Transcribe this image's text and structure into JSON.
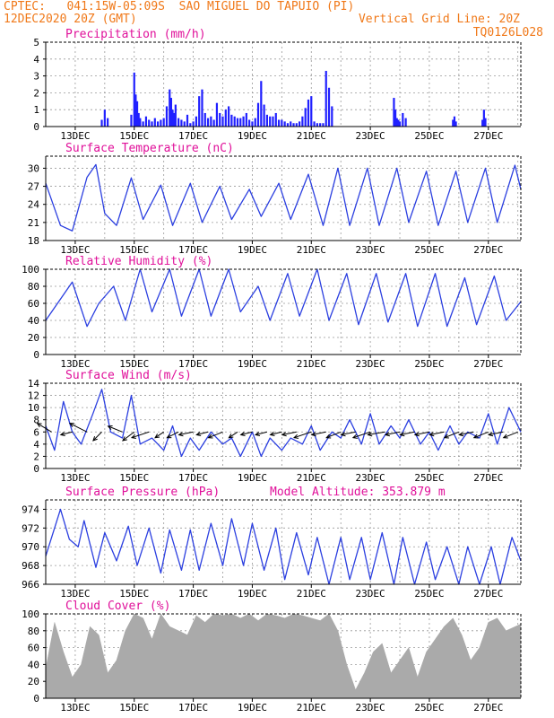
{
  "header": {
    "station_line": "CPTEC:   041:15W-05:09S  SAO MIGUEL DO TAPUIO (PI)",
    "time_line": "12DEC2020 20Z (GMT)",
    "grid_note": "Vertical Grid Line: 20Z",
    "code": "TQ0126L028"
  },
  "colors": {
    "header": "#f07818",
    "title": "#e0109a",
    "series": "#2b3fe0",
    "bars": "#2020ff",
    "cloud": "#aaaaaa",
    "grid": "#999999"
  },
  "chart_data": [
    {
      "type": "bar",
      "title": "Precipitation (mm/h)",
      "x_ticks": [
        "13DEC",
        "15DEC",
        "17DEC",
        "19DEC",
        "21DEC",
        "23DEC",
        "25DEC",
        "27DEC"
      ],
      "ylim": [
        0,
        5
      ],
      "y_ticks": [
        0,
        1,
        2,
        3,
        4,
        5
      ],
      "grid": true,
      "x_days": [
        1.9,
        2.0,
        2.1,
        2.9,
        3.0,
        3.05,
        3.1,
        3.15,
        3.2,
        3.3,
        3.4,
        3.5,
        3.6,
        3.7,
        3.8,
        3.9,
        4.0,
        4.1,
        4.2,
        4.25,
        4.3,
        4.35,
        4.4,
        4.5,
        4.6,
        4.7,
        4.8,
        4.9,
        5.0,
        5.1,
        5.2,
        5.3,
        5.4,
        5.5,
        5.6,
        5.7,
        5.8,
        5.9,
        6.0,
        6.1,
        6.2,
        6.3,
        6.4,
        6.5,
        6.6,
        6.7,
        6.8,
        6.9,
        7.0,
        7.1,
        7.2,
        7.3,
        7.4,
        7.5,
        7.6,
        7.7,
        7.8,
        7.9,
        8.0,
        8.1,
        8.2,
        8.3,
        8.4,
        8.5,
        8.6,
        8.7,
        8.8,
        8.9,
        9.0,
        9.1,
        9.2,
        9.3,
        9.4,
        9.5,
        9.6,
        9.7,
        11.8,
        11.85,
        11.9,
        11.95,
        12.0,
        12.1,
        12.2,
        13.8,
        13.85,
        13.9,
        14.8,
        14.85,
        14.9
      ],
      "values": [
        0.4,
        1.0,
        0.5,
        0.7,
        3.2,
        1.9,
        1.5,
        0.8,
        0.5,
        0.3,
        0.6,
        0.4,
        0.3,
        0.5,
        0.3,
        0.4,
        0.5,
        1.2,
        2.2,
        1.7,
        1.0,
        0.8,
        1.3,
        0.5,
        0.4,
        0.3,
        0.7,
        0.2,
        0.3,
        0.6,
        1.8,
        2.2,
        0.8,
        0.5,
        0.6,
        0.4,
        1.4,
        0.8,
        0.6,
        1.0,
        1.2,
        0.7,
        0.6,
        0.5,
        0.5,
        0.6,
        0.8,
        0.4,
        0.3,
        0.5,
        1.4,
        2.7,
        1.3,
        0.7,
        0.6,
        0.6,
        0.8,
        0.4,
        0.4,
        0.3,
        0.2,
        0.3,
        0.2,
        0.2,
        0.3,
        0.6,
        1.1,
        1.6,
        1.8,
        0.3,
        0.2,
        0.2,
        0.2,
        3.3,
        2.3,
        1.2,
        1.7,
        1.0,
        0.5,
        0.4,
        0.3,
        0.8,
        0.5,
        0.4,
        0.6,
        0.3,
        0.4,
        1.0,
        0.5
      ]
    },
    {
      "type": "line",
      "title": "Surface Temperature (nC)",
      "x_ticks": [
        "13DEC",
        "15DEC",
        "17DEC",
        "19DEC",
        "21DEC",
        "23DEC",
        "25DEC",
        "27DEC"
      ],
      "ylim": [
        18,
        32
      ],
      "y_ticks": [
        18,
        21,
        24,
        27,
        30
      ],
      "grid": true,
      "x_days": [
        0,
        0.5,
        0.9,
        1.4,
        1.7,
        2.0,
        2.4,
        2.9,
        3.3,
        3.9,
        4.3,
        4.9,
        5.3,
        5.9,
        6.3,
        6.9,
        7.3,
        7.9,
        8.3,
        8.9,
        9.4,
        9.9,
        10.3,
        10.9,
        11.3,
        11.9,
        12.3,
        12.9,
        13.3,
        13.9,
        14.3,
        14.9,
        15.3,
        15.9,
        16.1
      ],
      "values": [
        27.5,
        20.5,
        19.6,
        28.5,
        30.6,
        22.5,
        20.5,
        28.4,
        21.5,
        27.2,
        20.5,
        27.5,
        21.0,
        27.0,
        21.5,
        26.5,
        22.0,
        27.5,
        21.5,
        29.0,
        20.5,
        30.0,
        20.5,
        30.0,
        20.5,
        30.0,
        21.0,
        29.5,
        20.5,
        29.5,
        21.0,
        30.0,
        21.0,
        30.5,
        26.5
      ]
    },
    {
      "type": "line",
      "title": "Relative Humidity (%)",
      "x_ticks": [
        "13DEC",
        "15DEC",
        "17DEC",
        "19DEC",
        "21DEC",
        "23DEC",
        "25DEC",
        "27DEC"
      ],
      "ylim": [
        0,
        100
      ],
      "y_ticks": [
        0,
        20,
        40,
        60,
        80,
        100
      ],
      "grid": true,
      "x_days": [
        0,
        0.4,
        0.9,
        1.4,
        1.8,
        2.3,
        2.7,
        3.2,
        3.6,
        4.2,
        4.6,
        5.2,
        5.6,
        6.2,
        6.6,
        7.2,
        7.6,
        8.2,
        8.6,
        9.2,
        9.6,
        10.2,
        10.6,
        11.2,
        11.6,
        12.2,
        12.6,
        13.2,
        13.6,
        14.2,
        14.6,
        15.2,
        15.6,
        16.1
      ],
      "values": [
        40,
        60,
        85,
        33,
        60,
        80,
        40,
        100,
        50,
        100,
        45,
        100,
        45,
        100,
        50,
        80,
        40,
        95,
        45,
        100,
        40,
        95,
        35,
        95,
        38,
        95,
        33,
        95,
        33,
        90,
        35,
        92,
        40,
        62
      ]
    },
    {
      "type": "line",
      "title": "Surface Wind (m/s)",
      "x_ticks": [
        "13DEC",
        "15DEC",
        "17DEC",
        "19DEC",
        "21DEC",
        "23DEC",
        "25DEC",
        "27DEC"
      ],
      "ylim": [
        0,
        14
      ],
      "y_ticks": [
        0,
        2,
        4,
        6,
        8,
        10,
        12,
        14
      ],
      "grid": true,
      "x_days": [
        0,
        0.3,
        0.6,
        0.9,
        1.2,
        1.6,
        1.9,
        2.2,
        2.6,
        2.9,
        3.2,
        3.6,
        4.0,
        4.3,
        4.6,
        4.9,
        5.2,
        5.6,
        6.0,
        6.3,
        6.6,
        7.0,
        7.3,
        7.6,
        8.0,
        8.3,
        8.7,
        9.0,
        9.3,
        9.7,
        10.0,
        10.3,
        10.7,
        11.0,
        11.3,
        11.7,
        12.0,
        12.3,
        12.7,
        13.0,
        13.3,
        13.7,
        14.0,
        14.3,
        14.7,
        15.0,
        15.3,
        15.7,
        16.1
      ],
      "values": [
        7,
        3,
        11,
        6,
        4,
        9,
        13,
        6,
        5,
        12,
        4,
        5,
        3,
        7,
        2,
        5,
        3,
        6,
        4,
        5,
        2,
        6,
        2,
        5,
        3,
        5,
        4,
        7,
        3,
        6,
        5,
        8,
        4,
        9,
        4,
        7,
        5,
        8,
        4,
        6,
        3,
        7,
        4,
        6,
        5,
        9,
        4,
        10,
        6
      ],
      "vectors": {
        "x_days": [
          0.2,
          0.9,
          1.4,
          1.9,
          2.6,
          3.0,
          3.5,
          4.0,
          4.5,
          5.0,
          5.5,
          6.0,
          6.5,
          7.0,
          7.5,
          8.0,
          8.5,
          9.0,
          9.5,
          10.0,
          10.5,
          11.0,
          11.5,
          12.0,
          12.5,
          13.0,
          13.5,
          14.0,
          14.5,
          15.0,
          15.5,
          16.0
        ],
        "speed": [
          7,
          6,
          8,
          4,
          6,
          5,
          7,
          4,
          5,
          6,
          5,
          6,
          4,
          5,
          5,
          5,
          6,
          7,
          6,
          6,
          6,
          7,
          7,
          6,
          6,
          6,
          6,
          6,
          6,
          6,
          6,
          6
        ],
        "u": [
          -5,
          -4,
          -6,
          -3,
          -5,
          -4,
          -6,
          -3,
          -4,
          -5,
          -4,
          -5,
          -3,
          -4,
          -4,
          -4,
          -5,
          -6,
          -5,
          -5,
          -5,
          -6,
          -6,
          -5,
          -5,
          -5,
          -5,
          -5,
          -5,
          -5,
          -5,
          -5
        ],
        "v": [
          3,
          -1,
          3,
          -3,
          2,
          -3,
          -2,
          -2,
          -2,
          -1,
          -1,
          -2,
          -2,
          -1,
          -1,
          -1,
          -1,
          -2,
          -1,
          -2,
          -1,
          -2,
          -1,
          -1,
          -1,
          -1,
          -1,
          -2,
          -1,
          -2,
          -1,
          -2
        ]
      }
    },
    {
      "type": "line",
      "title": "Surface Pressure (hPa)",
      "annotation": "Model Altitude: 353.879 m",
      "x_ticks": [
        "13DEC",
        "15DEC",
        "17DEC",
        "19DEC",
        "21DEC",
        "23DEC",
        "25DEC",
        "27DEC"
      ],
      "ylim": [
        966,
        975
      ],
      "y_ticks": [
        966,
        968,
        970,
        972,
        974
      ],
      "grid": true,
      "x_days": [
        0,
        0.5,
        0.8,
        1.1,
        1.3,
        1.7,
        2.0,
        2.4,
        2.8,
        3.1,
        3.5,
        3.9,
        4.2,
        4.6,
        4.9,
        5.2,
        5.6,
        6.0,
        6.3,
        6.7,
        7.0,
        7.4,
        7.8,
        8.1,
        8.5,
        8.9,
        9.2,
        9.6,
        10.0,
        10.3,
        10.7,
        11.0,
        11.4,
        11.8,
        12.1,
        12.5,
        12.9,
        13.2,
        13.6,
        14.0,
        14.3,
        14.7,
        15.1,
        15.4,
        15.8,
        16.1
      ],
      "values": [
        969,
        974,
        970.8,
        970,
        972.8,
        967.8,
        971.5,
        968.5,
        972.2,
        968,
        972,
        967.2,
        971.8,
        967.5,
        971.8,
        967.5,
        972.5,
        968,
        973,
        968,
        972.5,
        967.5,
        972,
        966.5,
        971.5,
        967,
        971,
        966,
        971,
        966.5,
        971,
        966.5,
        971.5,
        966,
        971,
        966,
        970.5,
        966.5,
        970,
        966,
        970,
        966,
        970,
        966,
        971,
        968.5
      ]
    },
    {
      "type": "area",
      "title": "Cloud Cover (%)",
      "x_ticks": [
        "13DEC",
        "15DEC",
        "17DEC",
        "19DEC",
        "21DEC",
        "23DEC",
        "25DEC",
        "27DEC"
      ],
      "ylim": [
        0,
        100
      ],
      "y_ticks": [
        0,
        20,
        40,
        60,
        80,
        100
      ],
      "grid": true,
      "x_days": [
        0,
        0.3,
        0.6,
        0.9,
        1.2,
        1.5,
        1.8,
        2.1,
        2.4,
        2.7,
        3.0,
        3.3,
        3.6,
        3.9,
        4.2,
        4.5,
        4.8,
        5.1,
        5.4,
        5.7,
        6.0,
        6.3,
        6.6,
        6.9,
        7.2,
        7.5,
        7.8,
        8.1,
        8.4,
        8.7,
        9.0,
        9.3,
        9.6,
        9.9,
        10.2,
        10.5,
        10.8,
        11.1,
        11.4,
        11.7,
        12.0,
        12.3,
        12.6,
        12.9,
        13.2,
        13.5,
        13.8,
        14.1,
        14.4,
        14.7,
        15.0,
        15.3,
        15.6,
        16.1
      ],
      "values": [
        35,
        90,
        55,
        25,
        40,
        85,
        75,
        30,
        45,
        80,
        100,
        95,
        70,
        100,
        85,
        80,
        75,
        98,
        90,
        100,
        98,
        100,
        95,
        100,
        92,
        100,
        98,
        95,
        100,
        98,
        95,
        92,
        100,
        80,
        40,
        10,
        30,
        55,
        65,
        30,
        45,
        60,
        25,
        55,
        70,
        85,
        95,
        75,
        45,
        60,
        90,
        95,
        80,
        88
      ]
    }
  ]
}
